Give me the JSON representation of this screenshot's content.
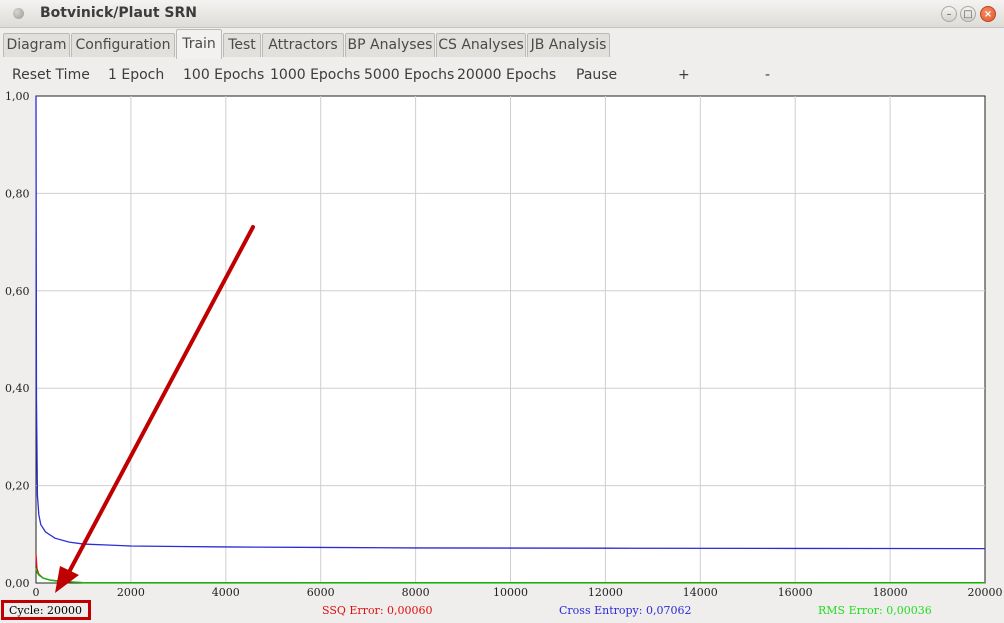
{
  "window": {
    "title": "Botvinick/Plaut SRN",
    "minimize_label": "–",
    "maximize_label": "□",
    "close_label": "×"
  },
  "tabs": [
    {
      "label": "Diagram"
    },
    {
      "label": "Configuration"
    },
    {
      "label": "Train",
      "active": true
    },
    {
      "label": "Test"
    },
    {
      "label": "Attractors"
    },
    {
      "label": "BP Analyses"
    },
    {
      "label": "CS Analyses"
    },
    {
      "label": "JB Analysis"
    }
  ],
  "toolbar": {
    "reset_time": "Reset Time",
    "epoch_1": "1 Epoch",
    "epoch_100": "100 Epochs",
    "epoch_1000": "1000 Epochs",
    "epoch_5000": "5000 Epochs",
    "epoch_20000": "20000 Epochs",
    "pause": "Pause",
    "plus": "+",
    "minus": "-"
  },
  "chart_data": {
    "type": "line",
    "xlim": [
      0,
      20000
    ],
    "ylim": [
      0,
      1.0
    ],
    "x_ticks": [
      "0",
      "2000",
      "4000",
      "6000",
      "8000",
      "10000",
      "12000",
      "14000",
      "16000",
      "18000",
      "20000"
    ],
    "y_ticks": [
      "0,00",
      "0,20",
      "0,40",
      "0,60",
      "0,80",
      "1,00"
    ],
    "grid": true,
    "series": [
      {
        "name": "Cross Entropy",
        "color": "#2b2bd8",
        "x": [
          0,
          10,
          30,
          60,
          100,
          200,
          400,
          700,
          1000,
          1500,
          2000,
          3000,
          4000,
          6000,
          8000,
          12000,
          16000,
          20000
        ],
        "y": [
          1.0,
          0.38,
          0.18,
          0.14,
          0.12,
          0.105,
          0.092,
          0.084,
          0.08,
          0.078,
          0.076,
          0.075,
          0.074,
          0.073,
          0.072,
          0.0715,
          0.071,
          0.0706
        ]
      },
      {
        "name": "SSQ Error",
        "color": "#e01010",
        "x": [
          0,
          20,
          60,
          150,
          300,
          500,
          800,
          1000,
          20000
        ],
        "y": [
          0.06,
          0.03,
          0.018,
          0.01,
          0.006,
          0.003,
          0.0015,
          0.0008,
          0.0006
        ]
      },
      {
        "name": "RMS Error",
        "color": "#00c000",
        "x": [
          0,
          20,
          60,
          150,
          300,
          500,
          800,
          1000,
          20000
        ],
        "y": [
          0.03,
          0.022,
          0.016,
          0.01,
          0.006,
          0.004,
          0.002,
          0.0008,
          0.00036
        ]
      }
    ]
  },
  "status": {
    "cycle": "Cycle: 20000",
    "ssq": "SSQ Error: 0,00060",
    "ssq_color": "#e01010",
    "ce": "Cross Entropy: 0,07062",
    "ce_color": "#2b2bd8",
    "rms": "RMS Error: 0,00036",
    "rms_color": "#22dd22"
  },
  "annotation": {
    "arrow_color": "#c00000"
  }
}
